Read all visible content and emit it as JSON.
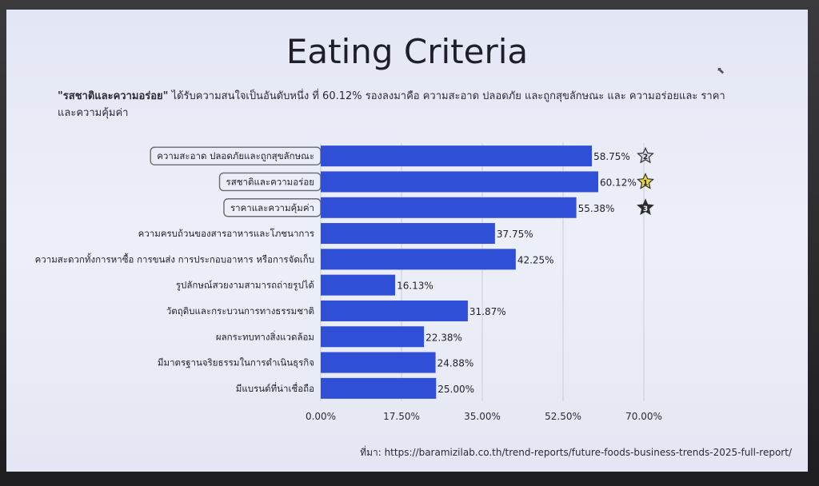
{
  "title": "Eating Criteria",
  "subtitle_bold": "\"รสชาติและความอร่อย\"",
  "subtitle_rest": " ได้รับความสนใจเป็นอันดับหนึ่ง ที่ 60.12% รองลงมาคือ ความสะอาด ปลอดภัย และถูกสุขลักษณะ และ ความอร่อยและ ราคาและความคุ้มค่า",
  "source": "ที่มา: https://baramizilab.co.th/trend-reports/future-foods-business-trends-2025-full-report/",
  "colors": {
    "bar": "#2f4fd6",
    "badge_border": "#6b6b6b",
    "star_gold": "#e9d64a",
    "star_silver": "#d8dbe6",
    "star_dark": "#2a2a2a"
  },
  "chart_data": {
    "type": "bar",
    "orientation": "horizontal",
    "categories": [
      "ความสะอาด ปลอดภัยและถูกสุขลักษณะ",
      "รสชาติและความอร่อย",
      "ราคาและความคุ้มค่า",
      "ความครบถ้วนของสารอาหารและโภชนาการ",
      "ความสะดวกทั้งการหาซื้อ การขนส่ง การประกอบอาหาร หรือการจัดเก็บ",
      "รูปลักษณ์สวยงามสามารถถ่ายรูปได้",
      "วัตถุดิบและกระบวนการทางธรรมชาติ",
      "ผลกระทบทางสิ่งแวดล้อม",
      "มีมาตรฐานจริยธรรมในการดำเนินธุรกิจ",
      "มีแบรนด์ที่น่าเชื่อถือ"
    ],
    "values": [
      58.75,
      60.12,
      55.38,
      37.75,
      42.25,
      16.13,
      31.87,
      22.38,
      24.88,
      25.0
    ],
    "value_labels": [
      "58.75%",
      "60.12%",
      "55.38%",
      "37.75%",
      "42.25%",
      "16.13%",
      "31.87%",
      "22.38%",
      "24.88%",
      "25.00%"
    ],
    "xlim": [
      0,
      70
    ],
    "xticks": [
      0,
      17.5,
      35,
      52.5,
      70
    ],
    "xtick_labels": [
      "0.00%",
      "17.50%",
      "35.00%",
      "52.50%",
      "70.00%"
    ],
    "grid": true,
    "highlighted": [
      0,
      1,
      2
    ],
    "ranks": [
      {
        "index": 0,
        "rank": "2",
        "style": "silver"
      },
      {
        "index": 1,
        "rank": "1",
        "style": "gold"
      },
      {
        "index": 2,
        "rank": "3",
        "style": "dark"
      }
    ]
  }
}
